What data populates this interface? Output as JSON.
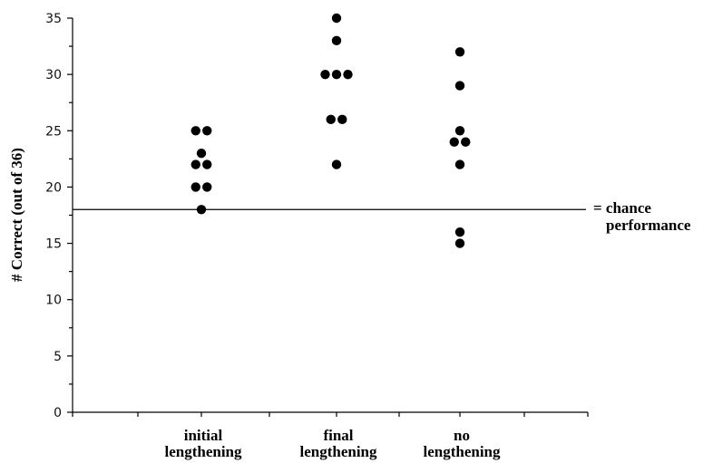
{
  "chart_data": {
    "type": "scatter",
    "ylabel": "# Correct (out of 36)",
    "xlabel": "",
    "ylim": [
      0,
      35
    ],
    "yticks": [
      0,
      5,
      10,
      15,
      20,
      25,
      30,
      35
    ],
    "categories": [
      {
        "line1": "initial",
        "line2": "lengthening"
      },
      {
        "line1": "final",
        "line2": "lengthening"
      },
      {
        "line1": "no",
        "line2": "lengthening"
      }
    ],
    "points": [
      {
        "category": 0,
        "values": [
          25,
          25,
          23,
          22,
          22,
          20,
          20,
          18
        ]
      },
      {
        "category": 1,
        "values": [
          35,
          33,
          30,
          30,
          30,
          26,
          26,
          22
        ]
      },
      {
        "category": 2,
        "values": [
          32,
          29,
          25,
          24,
          24,
          22,
          16,
          15
        ]
      }
    ],
    "reference_line": {
      "value": 18,
      "label_line1": "= chance",
      "label_line2": "performance"
    },
    "grid": false,
    "legend": "none"
  }
}
